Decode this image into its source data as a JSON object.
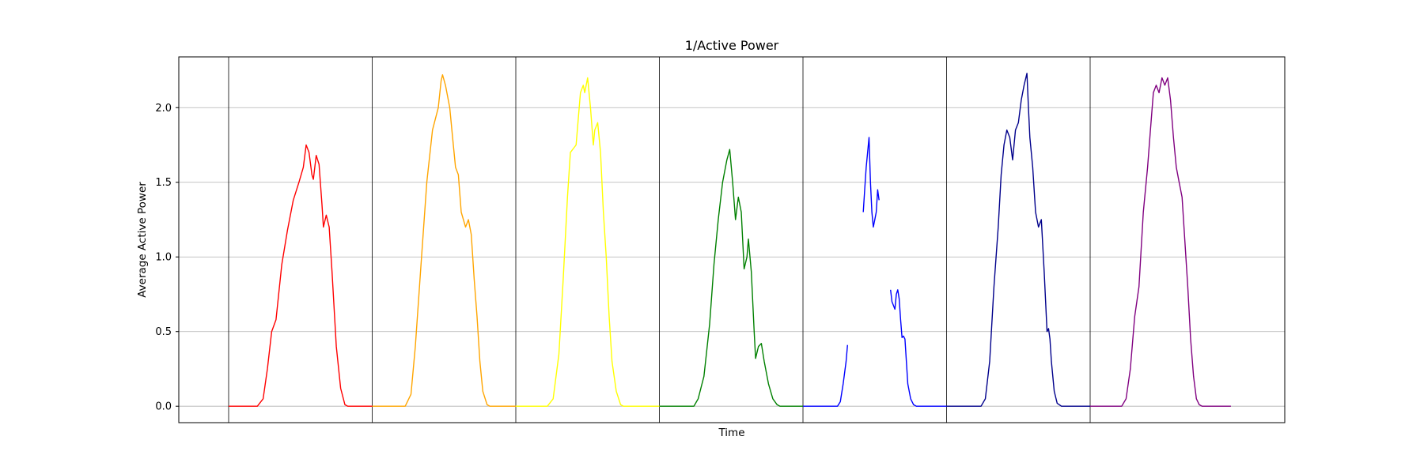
{
  "chart_data": {
    "type": "line",
    "title": "1/Active Power",
    "xlabel": "Time",
    "ylabel": "Average Active Power",
    "ylim": [
      -0.11,
      2.34
    ],
    "yticks": [
      0.0,
      0.5,
      1.0,
      1.5,
      2.0
    ],
    "ytick_labels": [
      "0.0",
      "0.5",
      "1.0",
      "1.5",
      "2.0"
    ],
    "y_grid": true,
    "xticks_shown": false,
    "day_separators": true,
    "colors": [
      "#ff0000",
      "#ffa500",
      "#ffff00",
      "#008000",
      "#0000ff",
      "#00008b",
      "#800080"
    ],
    "series": [
      {
        "color": "#ff0000",
        "segments": [
          [
            [
              0.0,
              0
            ],
            [
              0.2,
              0
            ],
            [
              0.24,
              0.05
            ],
            [
              0.27,
              0.25
            ],
            [
              0.3,
              0.5
            ],
            [
              0.33,
              0.58
            ],
            [
              0.37,
              0.95
            ],
            [
              0.41,
              1.18
            ],
            [
              0.45,
              1.38
            ],
            [
              0.49,
              1.5
            ],
            [
              0.52,
              1.6
            ],
            [
              0.54,
              1.75
            ],
            [
              0.56,
              1.7
            ],
            [
              0.58,
              1.55
            ],
            [
              0.59,
              1.52
            ],
            [
              0.61,
              1.68
            ],
            [
              0.63,
              1.62
            ],
            [
              0.65,
              1.35
            ],
            [
              0.66,
              1.2
            ],
            [
              0.68,
              1.28
            ],
            [
              0.7,
              1.2
            ],
            [
              0.72,
              0.9
            ],
            [
              0.75,
              0.4
            ],
            [
              0.78,
              0.12
            ],
            [
              0.81,
              0.01
            ],
            [
              0.83,
              0
            ],
            [
              1.0,
              0
            ]
          ]
        ]
      },
      {
        "color": "#ffa500",
        "segments": [
          [
            [
              0.0,
              0
            ],
            [
              0.23,
              0
            ],
            [
              0.27,
              0.08
            ],
            [
              0.3,
              0.4
            ],
            [
              0.34,
              0.95
            ],
            [
              0.38,
              1.5
            ],
            [
              0.42,
              1.85
            ],
            [
              0.46,
              2.0
            ],
            [
              0.48,
              2.18
            ],
            [
              0.49,
              2.22
            ],
            [
              0.51,
              2.15
            ],
            [
              0.54,
              2.0
            ],
            [
              0.56,
              1.8
            ],
            [
              0.58,
              1.6
            ],
            [
              0.6,
              1.55
            ],
            [
              0.62,
              1.3
            ],
            [
              0.65,
              1.2
            ],
            [
              0.67,
              1.25
            ],
            [
              0.69,
              1.15
            ],
            [
              0.71,
              0.85
            ],
            [
              0.73,
              0.6
            ],
            [
              0.75,
              0.3
            ],
            [
              0.77,
              0.1
            ],
            [
              0.8,
              0.01
            ],
            [
              0.82,
              0
            ],
            [
              1.0,
              0
            ]
          ]
        ]
      },
      {
        "color": "#ffff00",
        "segments": [
          [
            [
              0.0,
              0
            ],
            [
              0.22,
              0
            ],
            [
              0.26,
              0.05
            ],
            [
              0.3,
              0.35
            ],
            [
              0.33,
              0.85
            ],
            [
              0.36,
              1.4
            ],
            [
              0.38,
              1.7
            ],
            [
              0.42,
              1.75
            ],
            [
              0.45,
              2.1
            ],
            [
              0.47,
              2.15
            ],
            [
              0.48,
              2.1
            ],
            [
              0.5,
              2.2
            ],
            [
              0.52,
              2.0
            ],
            [
              0.54,
              1.75
            ],
            [
              0.55,
              1.85
            ],
            [
              0.57,
              1.9
            ],
            [
              0.59,
              1.7
            ],
            [
              0.61,
              1.3
            ],
            [
              0.63,
              1.0
            ],
            [
              0.65,
              0.6
            ],
            [
              0.67,
              0.3
            ],
            [
              0.7,
              0.1
            ],
            [
              0.73,
              0.01
            ],
            [
              0.75,
              0
            ],
            [
              1.0,
              0
            ]
          ]
        ]
      },
      {
        "color": "#008000",
        "segments": [
          [
            [
              0.0,
              0
            ],
            [
              0.24,
              0
            ],
            [
              0.27,
              0.05
            ],
            [
              0.31,
              0.2
            ],
            [
              0.35,
              0.55
            ],
            [
              0.38,
              0.95
            ],
            [
              0.41,
              1.25
            ],
            [
              0.44,
              1.5
            ],
            [
              0.47,
              1.65
            ],
            [
              0.49,
              1.72
            ],
            [
              0.51,
              1.5
            ],
            [
              0.53,
              1.25
            ],
            [
              0.55,
              1.4
            ],
            [
              0.57,
              1.3
            ],
            [
              0.59,
              0.92
            ],
            [
              0.61,
              1.0
            ],
            [
              0.62,
              1.12
            ],
            [
              0.64,
              0.9
            ],
            [
              0.66,
              0.5
            ],
            [
              0.67,
              0.32
            ],
            [
              0.69,
              0.4
            ],
            [
              0.71,
              0.42
            ],
            [
              0.73,
              0.3
            ],
            [
              0.76,
              0.15
            ],
            [
              0.79,
              0.05
            ],
            [
              0.82,
              0.01
            ],
            [
              0.84,
              0
            ],
            [
              1.0,
              0
            ]
          ]
        ]
      },
      {
        "color": "#0000ff",
        "segments": [
          [
            [
              0.0,
              0
            ],
            [
              0.24,
              0
            ],
            [
              0.26,
              0.03
            ],
            [
              0.28,
              0.15
            ],
            [
              0.3,
              0.3
            ],
            [
              0.31,
              0.41
            ]
          ],
          [
            [
              0.42,
              1.3
            ],
            [
              0.43,
              1.45
            ],
            [
              0.44,
              1.6
            ],
            [
              0.45,
              1.7
            ],
            [
              0.46,
              1.8
            ],
            [
              0.47,
              1.5
            ],
            [
              0.48,
              1.3
            ],
            [
              0.49,
              1.2
            ],
            [
              0.5,
              1.25
            ],
            [
              0.51,
              1.3
            ],
            [
              0.52,
              1.45
            ],
            [
              0.53,
              1.38
            ]
          ],
          [
            [
              0.61,
              0.78
            ],
            [
              0.62,
              0.7
            ],
            [
              0.64,
              0.65
            ],
            [
              0.65,
              0.75
            ],
            [
              0.66,
              0.78
            ],
            [
              0.67,
              0.72
            ],
            [
              0.68,
              0.58
            ],
            [
              0.69,
              0.46
            ],
            [
              0.7,
              0.47
            ],
            [
              0.71,
              0.45
            ],
            [
              0.72,
              0.3
            ],
            [
              0.73,
              0.15
            ],
            [
              0.75,
              0.05
            ],
            [
              0.77,
              0.01
            ],
            [
              0.79,
              0
            ],
            [
              1.0,
              0
            ]
          ]
        ]
      },
      {
        "color": "#00008b",
        "segments": [
          [
            [
              0.0,
              0
            ],
            [
              0.24,
              0
            ],
            [
              0.27,
              0.05
            ],
            [
              0.3,
              0.3
            ],
            [
              0.33,
              0.8
            ],
            [
              0.36,
              1.2
            ],
            [
              0.38,
              1.55
            ],
            [
              0.4,
              1.75
            ],
            [
              0.42,
              1.85
            ],
            [
              0.44,
              1.8
            ],
            [
              0.46,
              1.65
            ],
            [
              0.48,
              1.85
            ],
            [
              0.5,
              1.9
            ],
            [
              0.52,
              2.05
            ],
            [
              0.54,
              2.15
            ],
            [
              0.56,
              2.23
            ],
            [
              0.57,
              2.0
            ],
            [
              0.58,
              1.8
            ],
            [
              0.6,
              1.6
            ],
            [
              0.62,
              1.3
            ],
            [
              0.64,
              1.2
            ],
            [
              0.66,
              1.25
            ],
            [
              0.68,
              0.9
            ],
            [
              0.7,
              0.5
            ],
            [
              0.71,
              0.52
            ],
            [
              0.72,
              0.45
            ],
            [
              0.73,
              0.3
            ],
            [
              0.75,
              0.1
            ],
            [
              0.77,
              0.02
            ],
            [
              0.8,
              0
            ],
            [
              1.0,
              0
            ]
          ]
        ]
      },
      {
        "color": "#800080",
        "segments": [
          [
            [
              0.0,
              0
            ],
            [
              0.22,
              0
            ],
            [
              0.25,
              0.05
            ],
            [
              0.28,
              0.25
            ],
            [
              0.31,
              0.6
            ],
            [
              0.34,
              0.8
            ],
            [
              0.37,
              1.3
            ],
            [
              0.4,
              1.6
            ],
            [
              0.42,
              1.85
            ],
            [
              0.44,
              2.1
            ],
            [
              0.46,
              2.15
            ],
            [
              0.48,
              2.1
            ],
            [
              0.5,
              2.2
            ],
            [
              0.52,
              2.15
            ],
            [
              0.54,
              2.2
            ],
            [
              0.56,
              2.05
            ],
            [
              0.58,
              1.8
            ],
            [
              0.6,
              1.6
            ],
            [
              0.62,
              1.5
            ],
            [
              0.64,
              1.4
            ],
            [
              0.66,
              1.1
            ],
            [
              0.68,
              0.8
            ],
            [
              0.7,
              0.45
            ],
            [
              0.72,
              0.2
            ],
            [
              0.74,
              0.05
            ],
            [
              0.76,
              0.01
            ],
            [
              0.78,
              0
            ],
            [
              0.98,
              0
            ]
          ]
        ]
      }
    ]
  }
}
